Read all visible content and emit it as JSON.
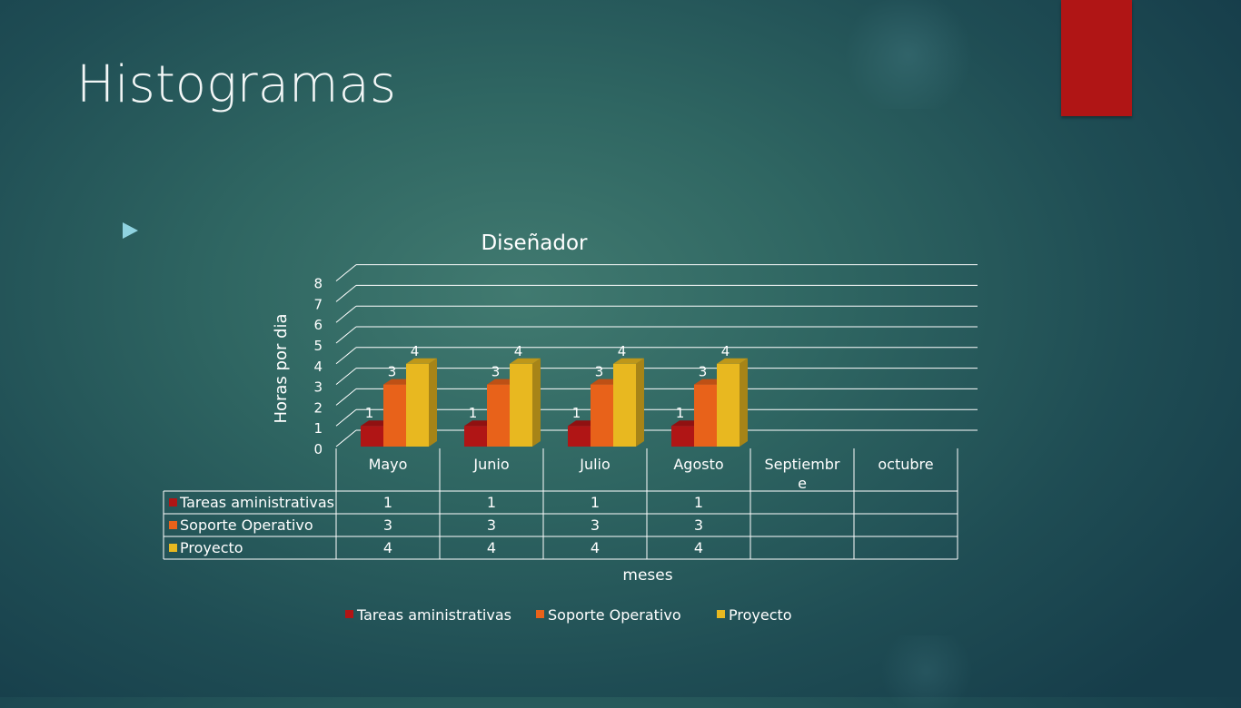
{
  "slide": {
    "title": "Histogramas"
  },
  "colors": {
    "accent_tab": "#b01515",
    "bullet": "#8fd3e0",
    "series": [
      "#b01515",
      "#e8621a",
      "#e8b820"
    ]
  },
  "chart_data": {
    "type": "bar",
    "title": "Diseñador",
    "xlabel": "meses",
    "ylabel": "Horas por dia",
    "ylim": [
      0,
      8
    ],
    "yticks": [
      "0",
      "1",
      "2",
      "3",
      "4",
      "5",
      "6",
      "7",
      "8"
    ],
    "grid": true,
    "legend_position": "bottom",
    "categories": [
      "Mayo",
      "Junio",
      "Julio",
      "Agosto",
      "Septiembre",
      "octubre"
    ],
    "category_labels": [
      [
        "Mayo"
      ],
      [
        "Junio"
      ],
      [
        "Julio"
      ],
      [
        "Agosto"
      ],
      [
        "Septiembr",
        "e"
      ],
      [
        "octubre"
      ]
    ],
    "series": [
      {
        "name": "Tareas aministrativas",
        "values": [
          1,
          1,
          1,
          1,
          null,
          null
        ]
      },
      {
        "name": "Soporte Operativo",
        "values": [
          3,
          3,
          3,
          3,
          null,
          null
        ]
      },
      {
        "name": "Proyecto",
        "values": [
          4,
          4,
          4,
          4,
          null,
          null
        ]
      }
    ],
    "data_table": true
  }
}
